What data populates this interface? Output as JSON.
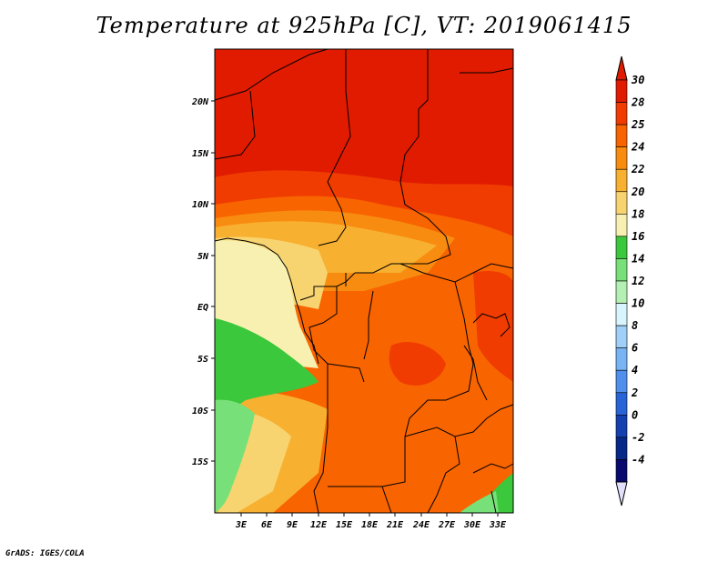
{
  "title": "Temperature at 925hPa [C], VT: 2019061415",
  "credit": "GrADS: IGES/COLA",
  "map": {
    "lon_range": [
      0,
      34
    ],
    "lat_range": [
      -20,
      25
    ],
    "x_ticks": [
      "3E",
      "6E",
      "9E",
      "12E",
      "15E",
      "18E",
      "21E",
      "24E",
      "27E",
      "30E",
      "33E"
    ],
    "y_ticks": [
      "20N",
      "15N",
      "10N",
      "5N",
      "EQ",
      "5S",
      "10S",
      "15S"
    ]
  },
  "colorbar": {
    "labels": [
      "30",
      "28",
      "25",
      "24",
      "22",
      "20",
      "18",
      "16",
      "14",
      "12",
      "10",
      "8",
      "6",
      "4",
      "2",
      "0",
      "-2",
      "-4"
    ],
    "colors": [
      "#e01b00",
      "#f03c00",
      "#f86400",
      "#f88c10",
      "#f8b030",
      "#f8d470",
      "#f8f0b0",
      "#3cc83c",
      "#78e078",
      "#b4f0b4",
      "#d8f4fc",
      "#a0d0f8",
      "#78b4f4",
      "#5090ec",
      "#2864d8",
      "#1440b0",
      "#082888",
      "#0a0a6e",
      "#e0e0fc"
    ]
  },
  "regions": [
    {
      "color": "#e01b00"
    },
    {
      "color": "#f03c00"
    },
    {
      "color": "#f86400"
    },
    {
      "color": "#f88c10"
    },
    {
      "color": "#f8b030"
    },
    {
      "color": "#f8d470"
    },
    {
      "color": "#f8f0b0"
    },
    {
      "color": "#3cc83c"
    },
    {
      "color": "#78e078"
    }
  ]
}
